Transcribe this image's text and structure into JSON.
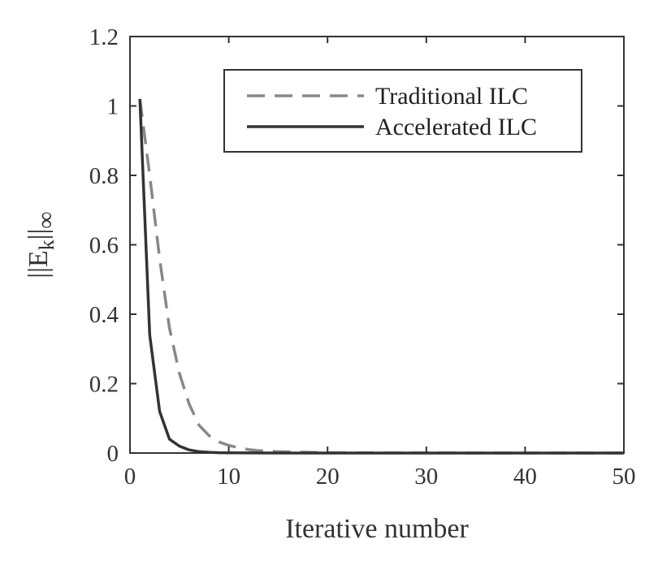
{
  "chart_data": {
    "type": "line",
    "xlabel": "Iterative number",
    "ylabel": {
      "prefix": "||E",
      "subscript": "k",
      "middle": "||",
      "suffix": "∞"
    },
    "xlim": [
      0,
      50
    ],
    "ylim": [
      0,
      1.2
    ],
    "xticks": [
      "0",
      "10",
      "20",
      "30",
      "40",
      "50"
    ],
    "yticks": [
      "0",
      "0.2",
      "0.4",
      "0.6",
      "0.8",
      "1",
      "1.2"
    ],
    "grid": false,
    "legend_position": "top-right",
    "series": [
      {
        "name": "Traditional ILC",
        "style": "dashed",
        "color": "#888888",
        "x": [
          1,
          2,
          3,
          4,
          5,
          6,
          7,
          8,
          9,
          10,
          11,
          12,
          13,
          15,
          20,
          25,
          30,
          40,
          50
        ],
        "y": [
          1.02,
          0.8,
          0.56,
          0.36,
          0.23,
          0.14,
          0.08,
          0.05,
          0.032,
          0.022,
          0.015,
          0.01,
          0.007,
          0.004,
          0.001,
          0.0005,
          0.0002,
          0.0001,
          0.0
        ]
      },
      {
        "name": "Accelerated ILC",
        "style": "solid",
        "color": "#333333",
        "x": [
          1,
          2,
          3,
          4,
          5,
          6,
          7,
          8,
          9,
          10,
          15,
          20,
          30,
          40,
          50
        ],
        "y": [
          1.02,
          0.34,
          0.12,
          0.04,
          0.02,
          0.009,
          0.004,
          0.002,
          0.001,
          0.0005,
          0.0001,
          0.0,
          0.0,
          0.0,
          0.0
        ]
      }
    ]
  }
}
